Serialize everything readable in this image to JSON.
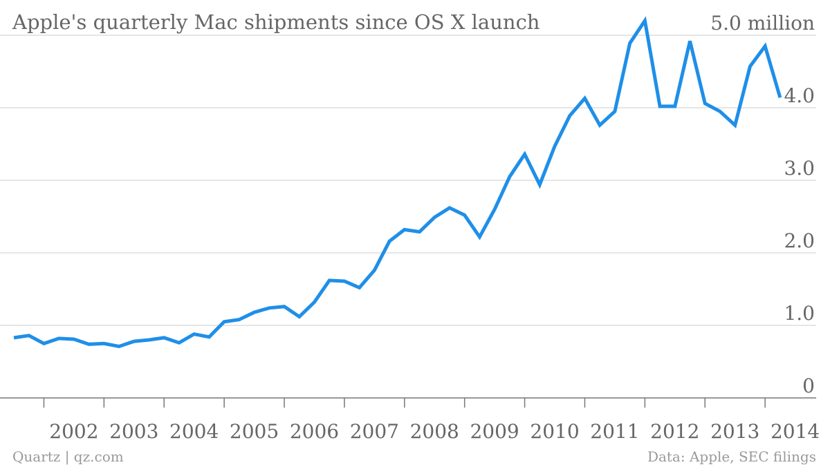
{
  "chart_data": {
    "type": "line",
    "title": "Apple's quarterly Mac shipments since OS X launch",
    "source_left": "Quartz | qz.com",
    "source_right": "Data: Apple, SEC filings",
    "x": [
      2001.5,
      2001.75,
      2002,
      2002.25,
      2002.5,
      2002.75,
      2003,
      2003.25,
      2003.5,
      2003.75,
      2004,
      2004.25,
      2004.5,
      2004.75,
      2005,
      2005.25,
      2005.5,
      2005.75,
      2006,
      2006.25,
      2006.5,
      2006.75,
      2007,
      2007.25,
      2007.5,
      2007.75,
      2008,
      2008.25,
      2008.5,
      2008.75,
      2009,
      2009.25,
      2009.5,
      2009.75,
      2010,
      2010.25,
      2010.5,
      2010.75,
      2011,
      2011.25,
      2011.5,
      2011.75,
      2012,
      2012.25,
      2012.5,
      2012.75,
      2013,
      2013.25,
      2013.5,
      2013.75,
      2014,
      2014.25
    ],
    "series": [
      {
        "name": "Mac shipments",
        "color": "#1f8fe8",
        "values": [
          0.83,
          0.86,
          0.75,
          0.82,
          0.81,
          0.74,
          0.75,
          0.71,
          0.78,
          0.8,
          0.83,
          0.76,
          0.88,
          0.84,
          1.05,
          1.08,
          1.18,
          1.24,
          1.26,
          1.12,
          1.32,
          1.62,
          1.61,
          1.52,
          1.76,
          2.16,
          2.32,
          2.29,
          2.49,
          2.62,
          2.52,
          2.22,
          2.6,
          3.05,
          3.36,
          2.94,
          3.47,
          3.89,
          4.13,
          3.76,
          3.95,
          4.89,
          5.2,
          4.02,
          4.02,
          4.92,
          4.06,
          3.95,
          3.76,
          4.57,
          4.85,
          4.14
        ]
      }
    ],
    "xlim": [
      2001.5,
      2014.85
    ],
    "xticks": [
      2002,
      2003,
      2004,
      2005,
      2006,
      2007,
      2008,
      2009,
      2010,
      2011,
      2012,
      2013,
      2014
    ],
    "ylim": [
      0,
      5.25
    ],
    "yticks": [
      0,
      {
        "value": 1,
        "label": "1.0"
      },
      {
        "value": 2,
        "label": "2.0"
      },
      {
        "value": 3,
        "label": "3.0"
      },
      {
        "value": 4,
        "label": "4.0"
      },
      {
        "value": 5,
        "label": "5.0 million"
      }
    ],
    "grid": true
  }
}
